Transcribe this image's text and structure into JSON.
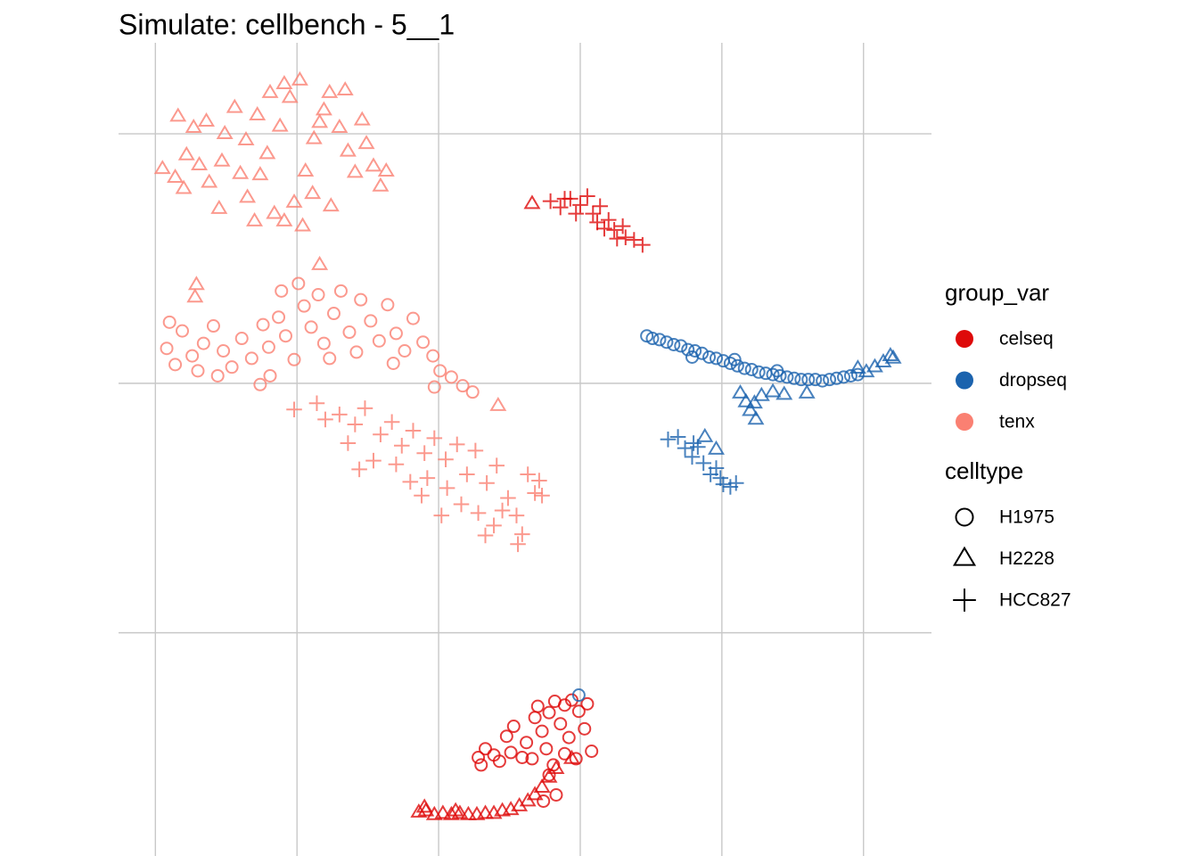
{
  "chart_data": {
    "type": "scatter",
    "title": "Simulate: cellbench - 5__1",
    "xlim": [
      -22.6,
      34.8
    ],
    "ylim": [
      -37.9,
      27.3
    ],
    "xticks": [
      -20,
      -10,
      0,
      10,
      20,
      30
    ],
    "yticks": [
      -20,
      0,
      20
    ],
    "grid": true,
    "legend_position": "right",
    "groups": {
      "title": "group_var",
      "entries": [
        {
          "name": "celseq",
          "color": "#de0a0a"
        },
        {
          "name": "dropseq",
          "color": "#1b63ae"
        },
        {
          "name": "tenx",
          "color": "#fa8072"
        }
      ]
    },
    "celltypes": {
      "title": "celltype",
      "entries": [
        {
          "name": "H1975",
          "shape": "circle"
        },
        {
          "name": "H2228",
          "shape": "triangle"
        },
        {
          "name": "HCC827",
          "shape": "plus"
        }
      ]
    },
    "series": [
      {
        "group": "tenx",
        "celltype": "H2228",
        "x": [
          -18.6,
          -19.5,
          -17.8,
          -16.9,
          -18.0,
          -16.2,
          -15.3,
          -17.3,
          -18.4,
          -16.4,
          -15.1,
          -14.4,
          -13.6,
          -12.8,
          -12.1,
          -11.2,
          -10.5,
          -9.8,
          -10.9,
          -11.9,
          -12.6,
          -13.5,
          -11.6,
          -10.2,
          -9.4,
          -8.8,
          -8.1,
          -7.7,
          -7.0,
          -6.4,
          -5.9,
          -5.1,
          -4.6,
          -4.1,
          -3.7,
          -5.4,
          -6.6,
          -8.9,
          -7.6,
          -10.9,
          -13.0,
          -15.5,
          -14.0,
          -9.6,
          -8.4,
          -17.1,
          -8.4,
          -17.2,
          4.2
        ],
        "y": [
          16.5,
          17.2,
          18.3,
          17.5,
          15.6,
          16.1,
          17.8,
          20.5,
          21.4,
          21.0,
          20.0,
          22.1,
          19.5,
          21.5,
          18.4,
          20.6,
          22.9,
          24.3,
          24.0,
          23.3,
          16.7,
          14.9,
          13.6,
          14.5,
          17.0,
          19.6,
          21.9,
          23.3,
          20.5,
          18.6,
          16.9,
          19.2,
          17.4,
          15.8,
          17.0,
          21.1,
          23.5,
          15.2,
          14.2,
          13.0,
          13.0,
          14.0,
          16.8,
          12.6,
          20.9,
          7.9,
          9.5,
          6.9,
          -1.8
        ]
      },
      {
        "group": "tenx",
        "celltype": "H1975",
        "x": [
          -19.2,
          -18.6,
          -19.0,
          -18.1,
          -17.4,
          -16.6,
          -17.0,
          -15.9,
          -15.2,
          -14.6,
          -15.6,
          -13.9,
          -13.2,
          -12.4,
          -12.0,
          -11.3,
          -10.8,
          -11.9,
          -12.6,
          -10.2,
          -9.5,
          -9.0,
          -8.5,
          -8.1,
          -7.4,
          -6.9,
          -6.3,
          -5.8,
          -5.5,
          -4.8,
          -4.2,
          -3.6,
          -3.0,
          -2.4,
          -1.8,
          -1.1,
          -0.4,
          0.1,
          0.9,
          1.7,
          2.4,
          -7.7,
          -9.9,
          -11.1,
          -3.2,
          -0.3
        ],
        "y": [
          2.8,
          1.5,
          4.9,
          4.2,
          2.2,
          3.2,
          1.0,
          4.6,
          2.6,
          1.3,
          0.6,
          3.6,
          2.0,
          4.7,
          2.9,
          5.3,
          3.8,
          0.6,
          -0.1,
          1.9,
          6.2,
          4.5,
          7.1,
          3.2,
          5.6,
          7.4,
          4.1,
          2.5,
          6.7,
          5.0,
          3.4,
          6.3,
          4.0,
          2.6,
          5.2,
          3.3,
          2.2,
          1.0,
          0.5,
          -0.2,
          -0.7,
          2.0,
          8.0,
          7.4,
          1.6,
          -0.3
        ]
      },
      {
        "group": "tenx",
        "celltype": "HCC827",
        "x": [
          -10.2,
          -8.6,
          -8.0,
          -7.0,
          -5.9,
          -5.2,
          -4.1,
          -3.3,
          -2.6,
          -1.8,
          -1.0,
          -0.3,
          0.5,
          1.3,
          2.0,
          2.6,
          3.4,
          4.1,
          4.9,
          5.5,
          5.9,
          5.6,
          6.8,
          7.3,
          -4.6,
          -3.0,
          -2.0,
          -0.8,
          0.6,
          1.6,
          2.8,
          3.9,
          4.5,
          -6.4,
          -5.6,
          -1.2,
          0.2,
          3.3,
          6.3,
          7.1
        ],
        "y": [
          -2.1,
          -1.6,
          -2.9,
          -2.5,
          -3.3,
          -2.0,
          -4.1,
          -3.1,
          -5.0,
          -3.8,
          -5.6,
          -4.4,
          -6.1,
          -4.9,
          -7.3,
          -5.4,
          -8.0,
          -6.6,
          -9.2,
          -10.6,
          -12.1,
          -12.9,
          -8.8,
          -9.0,
          -6.2,
          -6.5,
          -7.9,
          -7.6,
          -8.4,
          -9.7,
          -10.4,
          -11.4,
          -10.2,
          -4.8,
          -6.9,
          -9.0,
          -10.6,
          -12.2,
          -7.3,
          -7.8
        ]
      },
      {
        "group": "celseq",
        "celltype": "HCC827",
        "x": [
          7.9,
          8.6,
          9.3,
          10.0,
          10.5,
          9.7,
          10.9,
          11.4,
          11.2,
          12.0,
          12.4,
          13.0,
          13.2,
          13.8,
          14.4,
          12.6,
          11.7,
          8.9
        ],
        "y": [
          14.6,
          14.1,
          14.8,
          14.3,
          15.0,
          13.6,
          13.6,
          14.2,
          12.9,
          13.1,
          12.3,
          12.6,
          11.7,
          11.5,
          11.1,
          11.6,
          12.4,
          14.8
        ]
      },
      {
        "group": "celseq",
        "celltype": "H2228",
        "x": [
          6.6,
          -1.4,
          -0.9,
          -0.3,
          0.3,
          0.9,
          1.5,
          2.1,
          2.7,
          3.3,
          3.9,
          4.5,
          5.1,
          5.7,
          6.3,
          6.8,
          7.3,
          7.8,
          8.3,
          9.4,
          -1.0,
          1.2
        ],
        "y": [
          14.4,
          -34.4,
          -34.3,
          -34.6,
          -34.5,
          -34.6,
          -34.5,
          -34.6,
          -34.6,
          -34.5,
          -34.5,
          -34.3,
          -34.2,
          -33.9,
          -33.5,
          -33.0,
          -32.4,
          -31.6,
          -30.9,
          -30.1,
          -34.0,
          -34.3
        ]
      },
      {
        "group": "celseq",
        "celltype": "H1975",
        "x": [
          2.8,
          3.3,
          3.0,
          3.9,
          4.8,
          5.3,
          5.1,
          6.2,
          6.8,
          7.3,
          7.0,
          7.8,
          8.2,
          8.9,
          9.4,
          8.6,
          9.2,
          9.9,
          10.3,
          10.8,
          9.7,
          8.9,
          8.1,
          7.6,
          6.6,
          5.9,
          4.3,
          10.5,
          7.8,
          8.3,
          7.4
        ],
        "y": [
          -30.0,
          -29.3,
          -30.6,
          -29.8,
          -28.3,
          -27.5,
          -29.6,
          -28.8,
          -26.8,
          -27.9,
          -25.9,
          -26.4,
          -25.5,
          -25.8,
          -25.4,
          -27.3,
          -28.4,
          -26.3,
          -27.7,
          -29.5,
          -30.1,
          -29.7,
          -30.6,
          -29.3,
          -30.1,
          -30.0,
          -30.3,
          -25.7,
          -31.4,
          -33.0,
          -33.5
        ]
      },
      {
        "group": "dropseq",
        "celltype": "H1975",
        "x": [
          14.7,
          15.1,
          15.6,
          16.1,
          16.6,
          17.1,
          17.6,
          18.1,
          18.6,
          19.1,
          19.6,
          20.1,
          20.6,
          21.1,
          21.6,
          22.1,
          22.6,
          23.1,
          23.6,
          24.1,
          24.6,
          25.1,
          25.6,
          26.1,
          26.6,
          27.1,
          27.6,
          28.1,
          28.6,
          29.1,
          29.6,
          17.9,
          20.9,
          23.9,
          9.9
        ],
        "y": [
          3.8,
          3.6,
          3.5,
          3.3,
          3.1,
          3.0,
          2.7,
          2.6,
          2.4,
          2.1,
          2.0,
          1.8,
          1.6,
          1.4,
          1.2,
          1.1,
          0.9,
          0.8,
          0.7,
          0.6,
          0.5,
          0.4,
          0.3,
          0.3,
          0.3,
          0.2,
          0.3,
          0.4,
          0.5,
          0.6,
          0.7,
          2.1,
          1.9,
          1.0,
          -25.0
        ]
      },
      {
        "group": "dropseq",
        "celltype": "H2228",
        "x": [
          21.3,
          21.7,
          22.0,
          22.4,
          22.8,
          23.6,
          24.4,
          26.0,
          22.3,
          30.2,
          30.8,
          31.4,
          31.9,
          32.1,
          29.6,
          18.8,
          19.6
        ],
        "y": [
          -0.8,
          -1.5,
          -2.2,
          -2.9,
          -1.0,
          -0.7,
          -0.9,
          -0.8,
          -1.6,
          0.9,
          1.3,
          1.7,
          2.2,
          2.0,
          1.2,
          -4.3,
          -5.3
        ]
      },
      {
        "group": "dropseq",
        "celltype": "HCC827",
        "x": [
          16.2,
          16.9,
          17.4,
          17.9,
          18.3,
          18.7,
          19.2,
          19.6,
          20.1,
          20.6,
          21.0,
          18.0,
          19.9
        ],
        "y": [
          -4.5,
          -4.3,
          -5.2,
          -5.9,
          -5.1,
          -6.4,
          -7.3,
          -6.8,
          -8.1,
          -8.3,
          -8.0,
          -4.8,
          -7.6
        ]
      }
    ]
  }
}
